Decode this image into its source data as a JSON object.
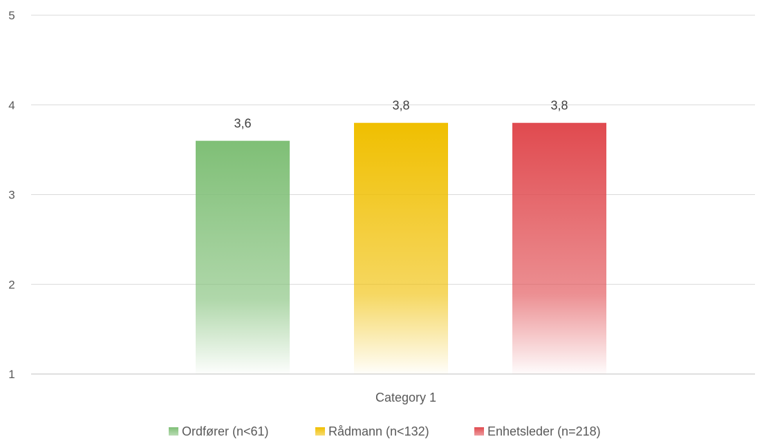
{
  "chart_data": {
    "type": "bar",
    "title": "",
    "xlabel": "",
    "ylabel": "",
    "ylim": [
      1,
      5
    ],
    "yticks": [
      1,
      2,
      3,
      4,
      5
    ],
    "grid": true,
    "legend_position": "bottom",
    "categories": [
      "Category 1"
    ],
    "series": [
      {
        "name": "Ordfører (n<61)",
        "values": [
          3.6
        ],
        "label": "3,6",
        "color": "#7fbf76"
      },
      {
        "name": "Rådmann (n<132)",
        "values": [
          3.8
        ],
        "label": "3,8",
        "color": "#f0bf00"
      },
      {
        "name": "Enhetsleder (n=218)",
        "values": [
          3.8
        ],
        "label": "3,8",
        "color": "#e04a4f"
      }
    ]
  }
}
